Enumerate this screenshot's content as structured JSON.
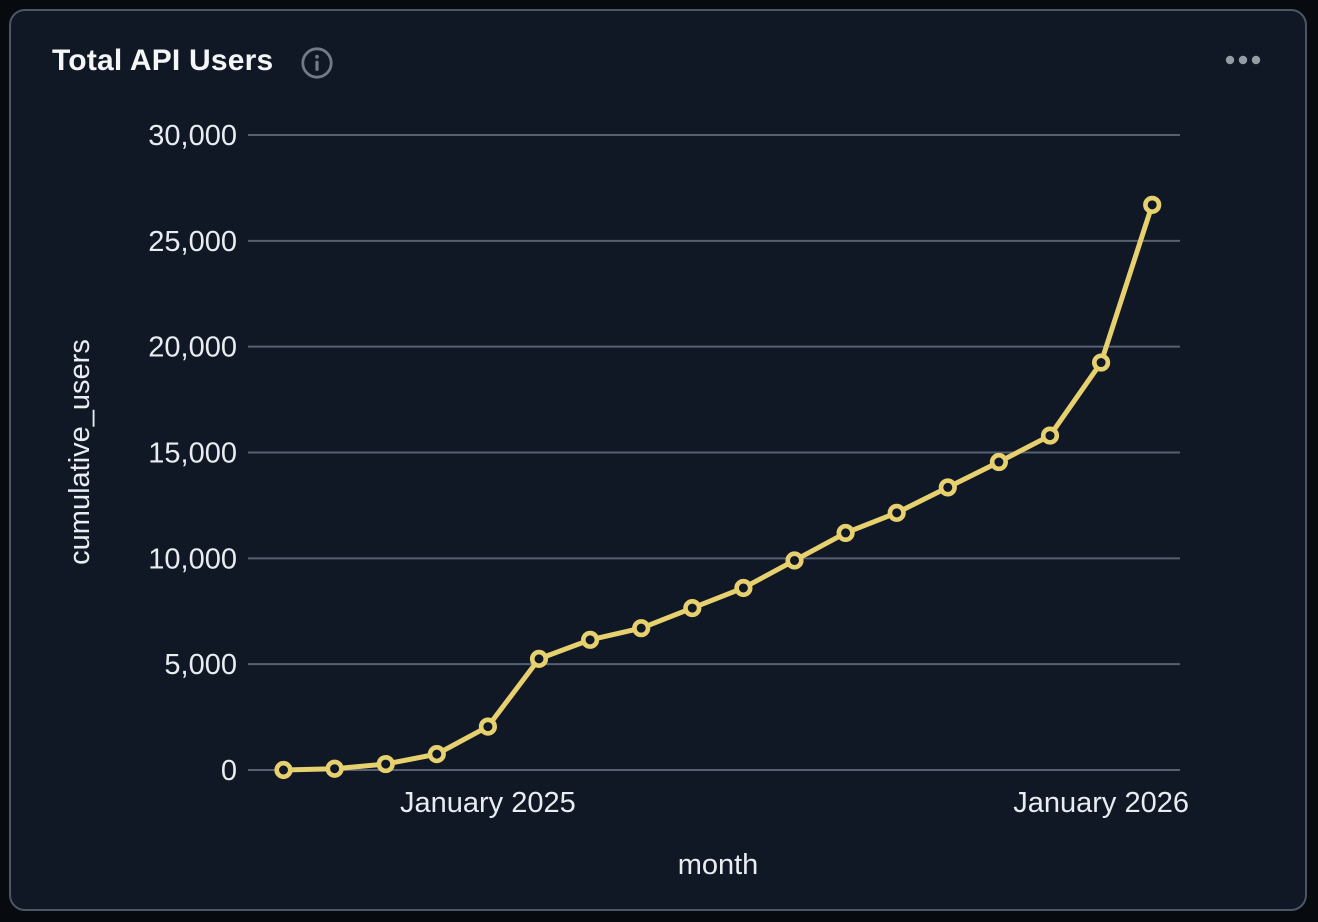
{
  "header": {
    "title": "Total API Users",
    "info_icon": "info-circle",
    "menu_icon": "ellipsis-horizontal"
  },
  "colors": {
    "background": "#070a0f",
    "card_background": "#101826",
    "card_border": "#4d5664",
    "grid": "#566070",
    "text": "#e9edf2",
    "title_text": "#f4f6f8",
    "icon_muted": "#717a86",
    "menu_dots": "#959ca6",
    "accent_line": "#e7d06e"
  },
  "chart_data": {
    "type": "line",
    "title": "Total API Users",
    "xlabel": "month",
    "ylabel": "cumulative_users",
    "series_name": "cumulative_users",
    "marker": "open-circle",
    "grid": "horizontal",
    "legend": "none",
    "categories": [
      "2024-09",
      "2024-10",
      "2024-11",
      "2024-12",
      "2025-01",
      "2025-02",
      "2025-03",
      "2025-04",
      "2025-05",
      "2025-06",
      "2025-07",
      "2025-08",
      "2025-09",
      "2025-10",
      "2025-11",
      "2025-12",
      "2026-01",
      "2026-02"
    ],
    "values": [
      0,
      60,
      280,
      750,
      2050,
      5250,
      6150,
      6700,
      7650,
      8600,
      9900,
      11200,
      12150,
      13350,
      14550,
      15800,
      19250,
      26700
    ],
    "ylim": [
      0,
      30000
    ],
    "yticks": [
      {
        "value": 0,
        "label": "0"
      },
      {
        "value": 5000,
        "label": "5,000"
      },
      {
        "value": 10000,
        "label": "10,000"
      },
      {
        "value": 15000,
        "label": "15,000"
      },
      {
        "value": 20000,
        "label": "20,000"
      },
      {
        "value": 25000,
        "label": "25,000"
      },
      {
        "value": 30000,
        "label": "30,000"
      }
    ],
    "xticks": [
      {
        "index": 4,
        "label": "January 2025"
      },
      {
        "index": 16,
        "label": "January 2026"
      }
    ]
  }
}
